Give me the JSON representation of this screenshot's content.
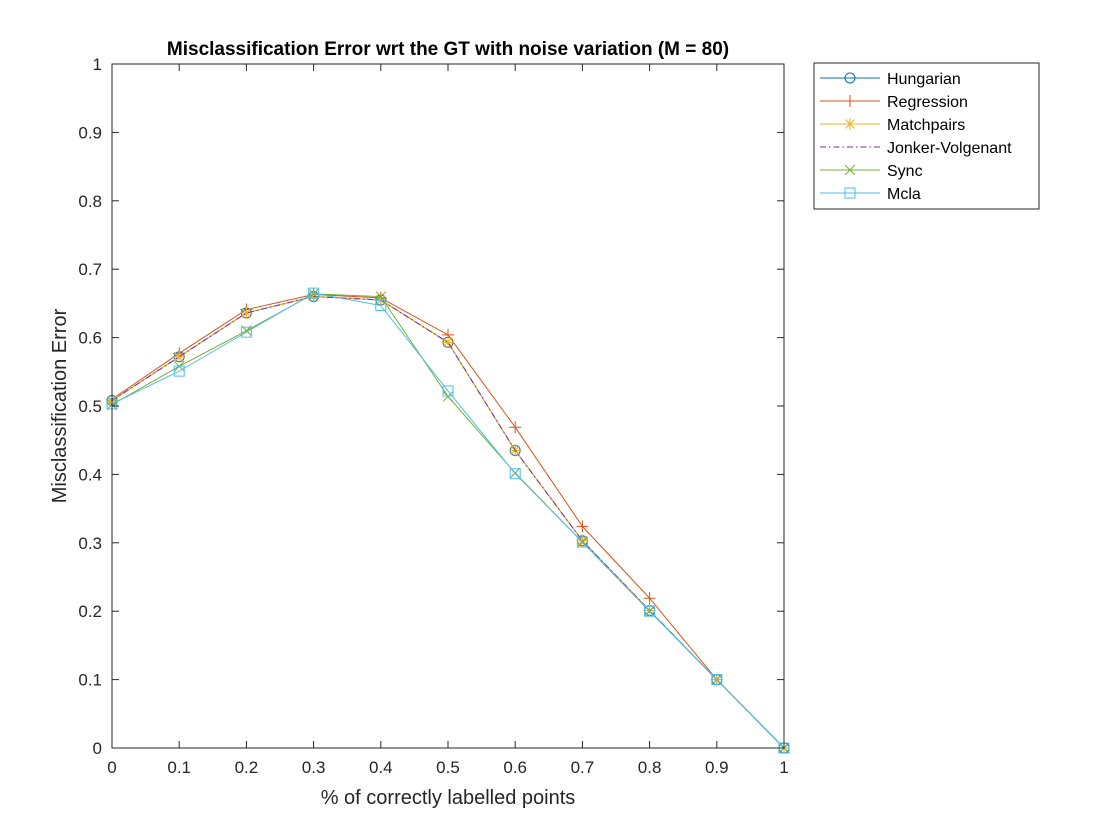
{
  "chart_data": {
    "type": "line",
    "title": "Misclassification Error wrt the GT with noise variation (M = 80)",
    "xlabel": "% of correctly labelled points",
    "ylabel": "Misclassification Error",
    "xlim": [
      0,
      1
    ],
    "ylim": [
      0,
      1
    ],
    "xticks": [
      "0",
      "0.1",
      "0.2",
      "0.3",
      "0.4",
      "0.5",
      "0.6",
      "0.7",
      "0.8",
      "0.9",
      "1"
    ],
    "yticks": [
      "0",
      "0.1",
      "0.2",
      "0.3",
      "0.4",
      "0.5",
      "0.6",
      "0.7",
      "0.8",
      "0.9",
      "1"
    ],
    "grid": false,
    "legend_position": "outside-top-right",
    "x": [
      0,
      0.1,
      0.2,
      0.3,
      0.4,
      0.5,
      0.6,
      0.7,
      0.8,
      0.9,
      1
    ],
    "series": [
      {
        "name": "Hungarian",
        "color": "#0072BD",
        "marker": "circle",
        "dash": "solid",
        "values": [
          0.508,
          0.572,
          0.636,
          0.66,
          0.655,
          0.593,
          0.435,
          0.303,
          0.201,
          0.1,
          0.0
        ]
      },
      {
        "name": "Regression",
        "color": "#D95319",
        "marker": "plus",
        "dash": "solid",
        "values": [
          0.51,
          0.577,
          0.641,
          0.663,
          0.658,
          0.604,
          0.469,
          0.324,
          0.219,
          0.1,
          0.0
        ]
      },
      {
        "name": "Matchpairs",
        "color": "#EDB120",
        "marker": "asterisk",
        "dash": "solid",
        "values": [
          0.508,
          0.572,
          0.636,
          0.66,
          0.655,
          0.593,
          0.435,
          0.303,
          0.201,
          0.1,
          0.0
        ]
      },
      {
        "name": "Jonker-Volgenant",
        "color": "#7E2F8E",
        "marker": "none",
        "dash": "dashdot",
        "values": [
          0.508,
          0.572,
          0.636,
          0.66,
          0.655,
          0.593,
          0.435,
          0.303,
          0.201,
          0.1,
          0.0
        ]
      },
      {
        "name": "Sync",
        "color": "#77AC30",
        "marker": "x",
        "dash": "solid",
        "values": [
          0.502,
          0.558,
          0.61,
          0.664,
          0.66,
          0.514,
          0.402,
          0.301,
          0.2,
          0.1,
          0.0
        ]
      },
      {
        "name": "Mcla",
        "color": "#4DBEEE",
        "marker": "square",
        "dash": "solid",
        "values": [
          0.503,
          0.551,
          0.608,
          0.665,
          0.647,
          0.522,
          0.401,
          0.301,
          0.2,
          0.1,
          0.0
        ]
      }
    ]
  }
}
